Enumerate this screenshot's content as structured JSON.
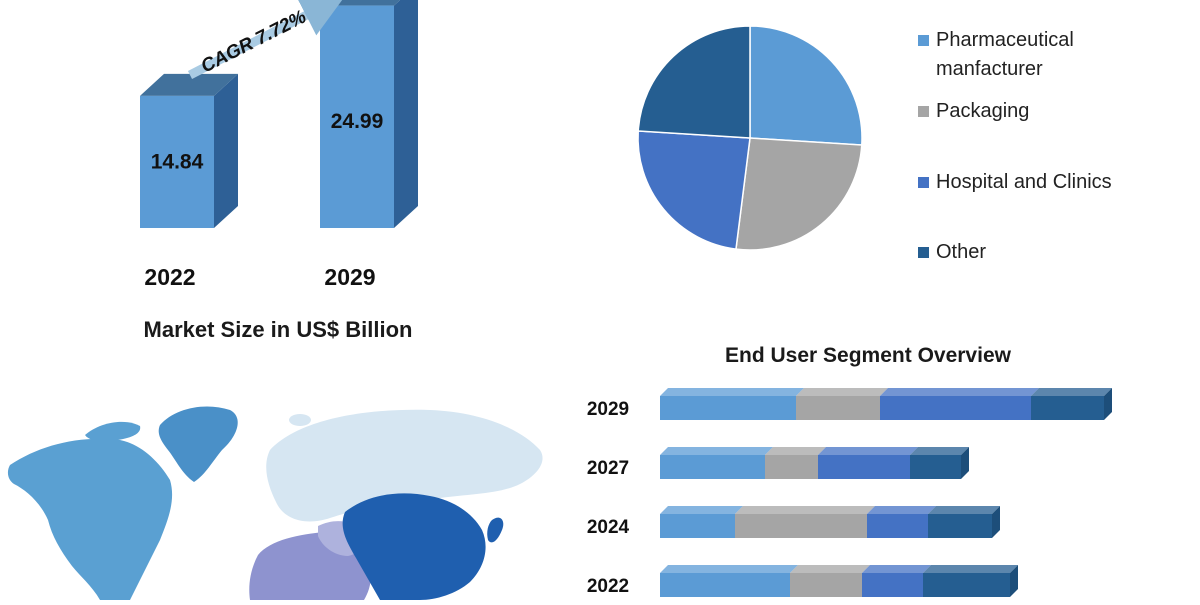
{
  "colors": {
    "pharma": "#5B9BD5",
    "packaging": "#A5A5A5",
    "hospital": "#4472C4",
    "other": "#255E91",
    "bar_face": "#5B9BD5",
    "bar_side": "#2E6096",
    "bar_top": "#41719C"
  },
  "chart_data": [
    {
      "type": "bar",
      "title": "",
      "xlabel": "Market Size in US$ Billion",
      "ylabel": "",
      "categories": [
        "2022",
        "2029"
      ],
      "values": [
        14.84,
        24.99
      ],
      "data_labels": [
        "14.84",
        "24.99"
      ],
      "annotation": "CAGR 7.72%",
      "grid": false,
      "legend": "none"
    },
    {
      "type": "pie",
      "title": "",
      "legend": "right",
      "labels": [
        "Pharmaceutical manfacturer",
        "Packaging",
        "Hospital and Clinics",
        "Other"
      ],
      "legend_lines": [
        [
          "Pharmaceutical",
          "manfacturer"
        ],
        [
          "Packaging"
        ],
        [
          "Hospital and Clinics"
        ],
        [
          "Other"
        ]
      ],
      "values": [
        26,
        26,
        24,
        24
      ]
    },
    {
      "type": "bar",
      "orientation": "horizontal",
      "stacked": true,
      "title": "End User Segment Overview",
      "categories": [
        "2029",
        "2027",
        "2024",
        "2022"
      ],
      "series": [
        {
          "name": "Pharmaceutical manfacturer",
          "values": [
            136,
            105,
            75,
            130
          ]
        },
        {
          "name": "Packaging",
          "values": [
            84,
            53,
            132,
            72
          ]
        },
        {
          "name": "Hospital and Clinics",
          "values": [
            151,
            92,
            61,
            61
          ]
        },
        {
          "name": "Other",
          "values": [
            73,
            51,
            64,
            87
          ]
        }
      ],
      "grid": false,
      "legend": "none"
    }
  ]
}
